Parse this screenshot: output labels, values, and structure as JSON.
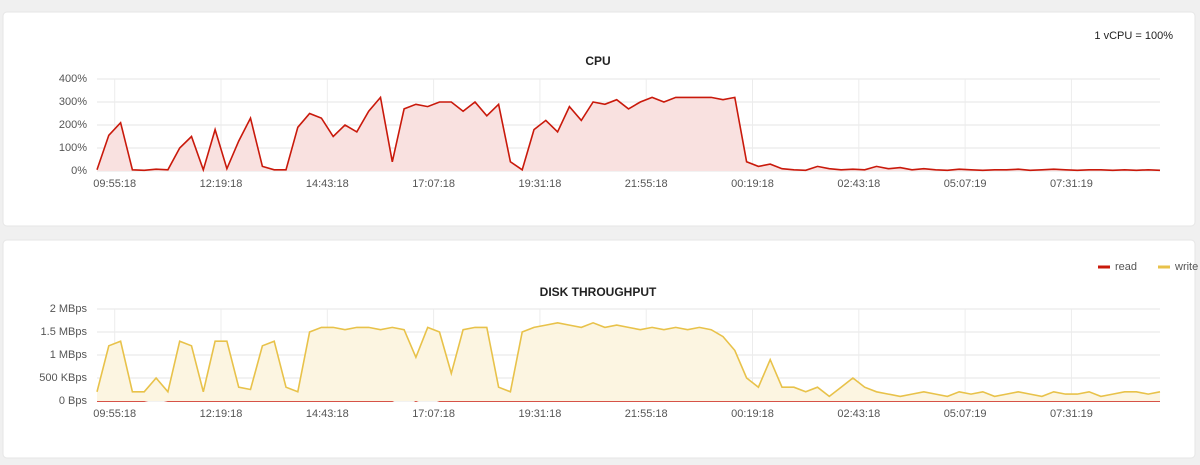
{
  "chart_data": [
    {
      "type": "area",
      "title": "CPU",
      "note": "1 vCPU = 100%",
      "color": "#c9190b",
      "fill": "#f9e1e0",
      "grid": true,
      "xlim": [
        -24,
        1416
      ],
      "xticks": [
        {
          "value": 0,
          "label": "09:55:18"
        },
        {
          "value": 144,
          "label": "12:19:18"
        },
        {
          "value": 288,
          "label": "14:43:18"
        },
        {
          "value": 432,
          "label": "17:07:18"
        },
        {
          "value": 576,
          "label": "19:31:18"
        },
        {
          "value": 720,
          "label": "21:55:18"
        },
        {
          "value": 864,
          "label": "00:19:18"
        },
        {
          "value": 1008,
          "label": "02:43:18"
        },
        {
          "value": 1152,
          "label": "05:07:19"
        },
        {
          "value": 1296,
          "label": "07:31:19"
        }
      ],
      "ylim": [
        0,
        400
      ],
      "yticks": [
        {
          "value": 0,
          "label": "0%"
        },
        {
          "value": 100,
          "label": "100%"
        },
        {
          "value": 200,
          "label": "200%"
        },
        {
          "value": 300,
          "label": "300%"
        },
        {
          "value": 400,
          "label": "400%"
        }
      ],
      "x": [
        -24,
        -8,
        8,
        24,
        40,
        56,
        72,
        88,
        104,
        120,
        136,
        152,
        168,
        184,
        200,
        216,
        232,
        248,
        264,
        280,
        296,
        312,
        328,
        344,
        360,
        376,
        392,
        408,
        424,
        440,
        456,
        472,
        488,
        504,
        520,
        536,
        552,
        568,
        584,
        600,
        616,
        632,
        648,
        664,
        680,
        696,
        712,
        728,
        744,
        760,
        776,
        792,
        808,
        824,
        840,
        856,
        872,
        888,
        904,
        920,
        936,
        952,
        968,
        984,
        1000,
        1016,
        1032,
        1048,
        1064,
        1080,
        1096,
        1112,
        1128,
        1144,
        1160,
        1176,
        1192,
        1208,
        1224,
        1240,
        1256,
        1272,
        1288,
        1304,
        1320,
        1336,
        1352,
        1368,
        1384,
        1400,
        1416
      ],
      "values": [
        5,
        155,
        210,
        5,
        3,
        8,
        5,
        100,
        150,
        5,
        180,
        10,
        130,
        230,
        20,
        5,
        5,
        190,
        250,
        230,
        150,
        200,
        170,
        260,
        320,
        40,
        270,
        290,
        280,
        300,
        300,
        260,
        300,
        240,
        290,
        40,
        5,
        180,
        220,
        170,
        280,
        220,
        300,
        290,
        310,
        270,
        300,
        320,
        300,
        320,
        320,
        320,
        320,
        310,
        320,
        40,
        20,
        30,
        10,
        5,
        3,
        20,
        10,
        5,
        8,
        5,
        20,
        10,
        15,
        5,
        10,
        5,
        3,
        8,
        5,
        3,
        5,
        5,
        8,
        3,
        5,
        8,
        5,
        3,
        5,
        5,
        3,
        5,
        3,
        5,
        3
      ]
    },
    {
      "type": "area",
      "title": "DISK THROUGHPUT",
      "legend": "top-right",
      "grid": true,
      "xlim": [
        -24,
        1416
      ],
      "xticks": [
        {
          "value": 0,
          "label": "09:55:18"
        },
        {
          "value": 144,
          "label": "12:19:18"
        },
        {
          "value": 288,
          "label": "14:43:18"
        },
        {
          "value": 432,
          "label": "17:07:18"
        },
        {
          "value": 576,
          "label": "19:31:18"
        },
        {
          "value": 720,
          "label": "21:55:18"
        },
        {
          "value": 864,
          "label": "00:19:18"
        },
        {
          "value": 1008,
          "label": "02:43:18"
        },
        {
          "value": 1152,
          "label": "05:07:19"
        },
        {
          "value": 1296,
          "label": "07:31:19"
        }
      ],
      "ylim": [
        0,
        2
      ],
      "yticks": [
        {
          "value": 0,
          "label": "0 Bps"
        },
        {
          "value": 0.5,
          "label": "500 KBps"
        },
        {
          "value": 1,
          "label": "1 MBps"
        },
        {
          "value": 1.5,
          "label": "1.5 MBps"
        },
        {
          "value": 2,
          "label": "2 MBps"
        }
      ],
      "x": [
        -24,
        -8,
        8,
        24,
        40,
        56,
        72,
        88,
        104,
        120,
        136,
        152,
        168,
        184,
        200,
        216,
        232,
        248,
        264,
        280,
        296,
        312,
        328,
        344,
        360,
        376,
        392,
        408,
        424,
        440,
        456,
        472,
        488,
        504,
        520,
        536,
        552,
        568,
        584,
        600,
        616,
        632,
        648,
        664,
        680,
        696,
        712,
        728,
        744,
        760,
        776,
        792,
        808,
        824,
        840,
        856,
        872,
        888,
        904,
        920,
        936,
        952,
        968,
        984,
        1000,
        1016,
        1032,
        1048,
        1064,
        1080,
        1096,
        1112,
        1128,
        1144,
        1160,
        1176,
        1192,
        1208,
        1224,
        1240,
        1256,
        1272,
        1288,
        1304,
        1320,
        1336,
        1352,
        1368,
        1384,
        1400,
        1416
      ],
      "series": [
        {
          "name": "read",
          "color": "#c9190b",
          "fill": "none",
          "values": [
            0,
            0,
            0,
            0,
            0,
            0.05,
            0,
            0,
            0,
            0,
            0,
            0,
            0,
            0,
            0,
            0,
            0,
            0,
            0,
            0,
            0,
            0,
            0,
            0,
            0,
            0,
            0.1,
            0,
            0.08,
            0,
            0,
            0,
            0,
            0,
            0,
            0,
            0,
            0,
            0,
            0,
            0,
            0,
            0,
            0,
            0,
            0,
            0,
            0,
            0,
            0,
            0,
            0,
            0,
            0,
            0,
            0,
            0,
            0,
            0,
            0,
            0,
            0,
            0,
            0,
            0,
            0,
            0,
            0,
            0,
            0,
            0,
            0,
            0,
            0,
            0,
            0,
            0,
            0,
            0,
            0,
            0,
            0,
            0,
            0,
            0,
            0,
            0,
            0,
            0,
            0,
            0
          ]
        },
        {
          "name": "write",
          "color": "#e8c24a",
          "fill": "#fcf5e1",
          "values": [
            0.2,
            1.2,
            1.3,
            0.2,
            0.2,
            0.5,
            0.2,
            1.3,
            1.2,
            0.2,
            1.3,
            1.3,
            0.3,
            0.25,
            1.2,
            1.3,
            0.3,
            0.2,
            1.5,
            1.6,
            1.6,
            1.55,
            1.6,
            1.6,
            1.55,
            1.6,
            1.55,
            0.95,
            1.6,
            1.5,
            0.6,
            1.55,
            1.6,
            1.6,
            0.3,
            0.2,
            1.5,
            1.6,
            1.65,
            1.7,
            1.65,
            1.6,
            1.7,
            1.6,
            1.65,
            1.6,
            1.55,
            1.6,
            1.55,
            1.6,
            1.55,
            1.6,
            1.55,
            1.4,
            1.1,
            0.5,
            0.3,
            0.9,
            0.3,
            0.3,
            0.2,
            0.3,
            0.1,
            0.3,
            0.5,
            0.3,
            0.2,
            0.15,
            0.1,
            0.15,
            0.2,
            0.15,
            0.1,
            0.2,
            0.15,
            0.2,
            0.1,
            0.15,
            0.2,
            0.15,
            0.1,
            0.2,
            0.15,
            0.15,
            0.2,
            0.1,
            0.15,
            0.2,
            0.2,
            0.15,
            0.2
          ]
        }
      ]
    }
  ]
}
